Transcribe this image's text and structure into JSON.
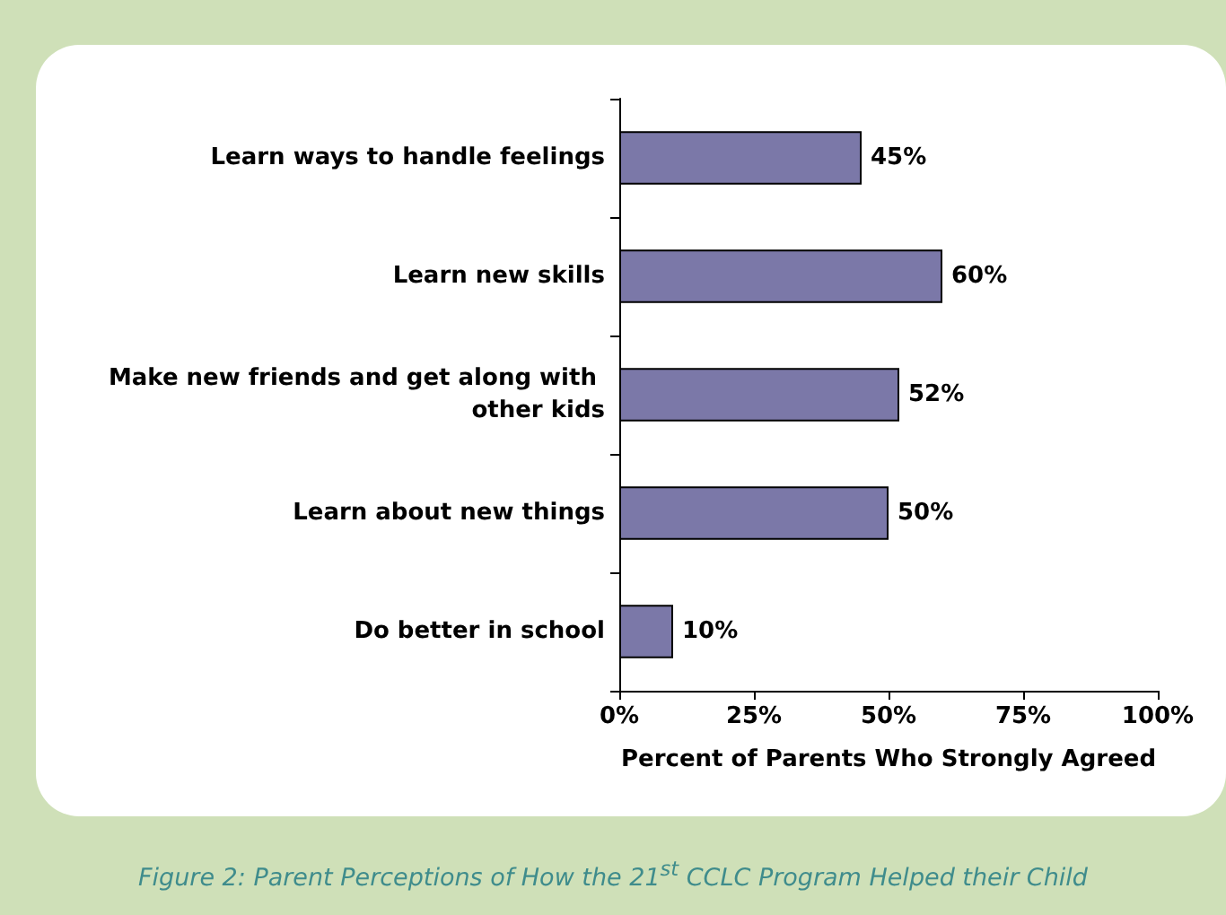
{
  "chart_data": {
    "type": "bar",
    "orientation": "horizontal",
    "categories": [
      "Learn ways to handle feelings",
      "Learn new skills",
      "Make new friends and get along with other kids",
      "Learn about new things",
      "Do better in school"
    ],
    "values": [
      45,
      60,
      52,
      50,
      10
    ],
    "value_labels": [
      "45%",
      "60%",
      "52%",
      "50%",
      "10%"
    ],
    "color": "#7b78a8",
    "xlim": [
      0,
      100
    ],
    "xticks": [
      {
        "value": 0,
        "label": "0%"
      },
      {
        "value": 25,
        "label": "25%"
      },
      {
        "value": 50,
        "label": "50%"
      },
      {
        "value": 75,
        "label": "75%"
      },
      {
        "value": 100,
        "label": "100%"
      }
    ],
    "xlabel": "Percent of Parents Who Strongly Agreed",
    "annotations": [
      "Figure 2: Parent Perceptions of How the 21$^{st}$ CCLC Program Helped their Child"
    ]
  }
}
